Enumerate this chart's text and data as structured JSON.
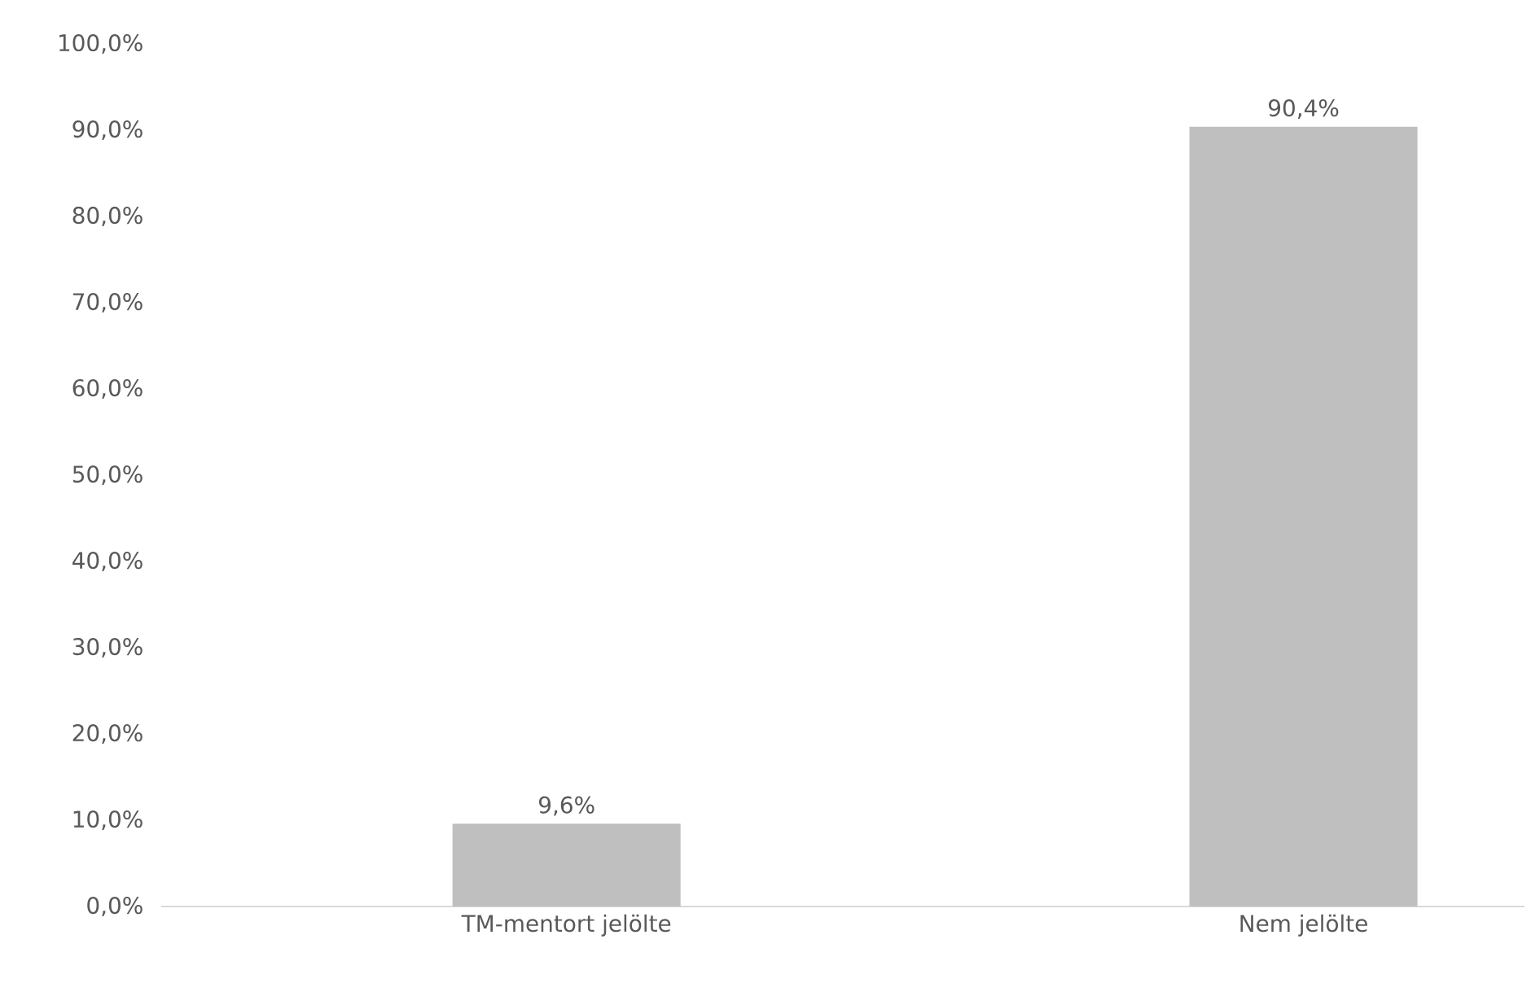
{
  "chart_data": {
    "type": "bar",
    "categories": [
      "TM-mentort jelölte",
      "Nem jelölte"
    ],
    "values": [
      9.6,
      90.4
    ],
    "value_labels": [
      "9,6%",
      "90,4%"
    ],
    "color": "#bfbfbf",
    "ylim": [
      0,
      100
    ],
    "yticks": [
      {
        "value": 0,
        "label": "0,0%"
      },
      {
        "value": 10,
        "label": "10,0%"
      },
      {
        "value": 20,
        "label": "20,0%"
      },
      {
        "value": 30,
        "label": "30,0%"
      },
      {
        "value": 40,
        "label": "40,0%"
      },
      {
        "value": 50,
        "label": "50,0%"
      },
      {
        "value": 60,
        "label": "60,0%"
      },
      {
        "value": 70,
        "label": "70,0%"
      },
      {
        "value": 80,
        "label": "80,0%"
      },
      {
        "value": 90,
        "label": "90,0%"
      },
      {
        "value": 100,
        "label": "100,0%"
      }
    ],
    "grid": false
  }
}
